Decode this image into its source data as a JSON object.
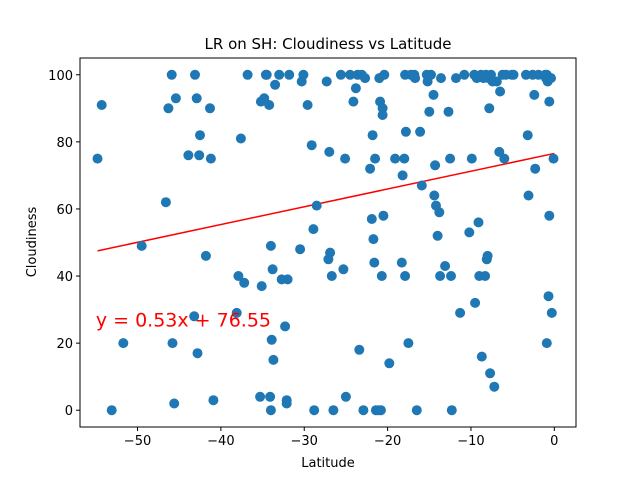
{
  "chart_data": {
    "type": "scatter",
    "title": "LR on SH: Cloudiness vs Latitude",
    "xlabel": "Latitude",
    "ylabel": "Cloudiness",
    "xlim": [
      -56.9,
      2.6
    ],
    "ylim": [
      -5,
      105
    ],
    "xticks": [
      -50,
      -40,
      -30,
      -20,
      -10,
      0
    ],
    "yticks": [
      0,
      20,
      40,
      60,
      80,
      100
    ],
    "grid": false,
    "colors": {
      "points": "#1f77b4",
      "line": "#ff0000",
      "equation": "#ff0000"
    },
    "regression": {
      "slope": 0.53,
      "intercept": 76.55,
      "x_range": [
        -54.8,
        0
      ],
      "label": "y = 0.53x + 76.55",
      "label_anchor": [
        -55,
        25
      ]
    },
    "points": [
      [
        -54.8,
        75
      ],
      [
        -54.3,
        91
      ],
      [
        -53.1,
        0
      ],
      [
        -51.7,
        20
      ],
      [
        -49.5,
        49
      ],
      [
        -46.6,
        62
      ],
      [
        -46.3,
        90
      ],
      [
        -45.9,
        100
      ],
      [
        -45.8,
        20
      ],
      [
        -45.6,
        2
      ],
      [
        -45.4,
        93
      ],
      [
        -43.9,
        76
      ],
      [
        -43.2,
        28
      ],
      [
        -43.1,
        100
      ],
      [
        -42.9,
        93
      ],
      [
        -42.8,
        17
      ],
      [
        -42.6,
        76
      ],
      [
        -42.5,
        82
      ],
      [
        -41.8,
        46
      ],
      [
        -41.3,
        90
      ],
      [
        -41.2,
        75
      ],
      [
        -40.9,
        3
      ],
      [
        -38.1,
        29
      ],
      [
        -37.9,
        40
      ],
      [
        -37.6,
        81
      ],
      [
        -37.2,
        38
      ],
      [
        -36.8,
        100
      ],
      [
        -35.3,
        4
      ],
      [
        -35.2,
        92
      ],
      [
        -35.1,
        37
      ],
      [
        -34.8,
        93
      ],
      [
        -34.6,
        100
      ],
      [
        -34.5,
        100
      ],
      [
        -34.2,
        91
      ],
      [
        -34.1,
        4
      ],
      [
        -34.0,
        49
      ],
      [
        -34.0,
        0
      ],
      [
        -33.9,
        21
      ],
      [
        -33.8,
        42
      ],
      [
        -33.7,
        15
      ],
      [
        -33.5,
        97
      ],
      [
        -33.0,
        100
      ],
      [
        -32.7,
        39
      ],
      [
        -32.3,
        25
      ],
      [
        -32.1,
        3
      ],
      [
        -32.1,
        2
      ],
      [
        -32.0,
        39
      ],
      [
        -31.8,
        100
      ],
      [
        -30.5,
        48
      ],
      [
        -30.3,
        98
      ],
      [
        -30.1,
        100
      ],
      [
        -29.6,
        91
      ],
      [
        -29.1,
        79
      ],
      [
        -28.9,
        54
      ],
      [
        -28.8,
        0
      ],
      [
        -28.5,
        61
      ],
      [
        -27.3,
        98
      ],
      [
        -27.1,
        45
      ],
      [
        -27.0,
        77
      ],
      [
        -26.9,
        47
      ],
      [
        -26.7,
        40
      ],
      [
        -26.5,
        0
      ],
      [
        -25.6,
        100
      ],
      [
        -25.3,
        42
      ],
      [
        -25.1,
        75
      ],
      [
        -25.0,
        4
      ],
      [
        -24.5,
        100
      ],
      [
        -24.1,
        92
      ],
      [
        -23.8,
        96
      ],
      [
        -23.6,
        100
      ],
      [
        -23.4,
        18
      ],
      [
        -23.1,
        100
      ],
      [
        -22.9,
        0
      ],
      [
        -22.7,
        99
      ],
      [
        -22.1,
        72
      ],
      [
        -21.9,
        57
      ],
      [
        -21.8,
        82
      ],
      [
        -21.7,
        51
      ],
      [
        -21.6,
        44
      ],
      [
        -21.5,
        75
      ],
      [
        -21.4,
        0
      ],
      [
        -21.1,
        0
      ],
      [
        -21.0,
        99
      ],
      [
        -20.9,
        92
      ],
      [
        -20.8,
        0
      ],
      [
        -20.7,
        40
      ],
      [
        -20.6,
        90
      ],
      [
        -20.6,
        88
      ],
      [
        -20.5,
        58
      ],
      [
        -20.4,
        100
      ],
      [
        -19.8,
        14
      ],
      [
        -19.1,
        75
      ],
      [
        -18.3,
        44
      ],
      [
        -18.2,
        70
      ],
      [
        -18.0,
        75
      ],
      [
        -17.9,
        100
      ],
      [
        -17.8,
        83
      ],
      [
        -17.9,
        40
      ],
      [
        -17.5,
        20
      ],
      [
        -17.2,
        100
      ],
      [
        -16.8,
        100
      ],
      [
        -16.7,
        99
      ],
      [
        -16.5,
        0
      ],
      [
        -16.1,
        83
      ],
      [
        -15.9,
        67
      ],
      [
        -15.3,
        100
      ],
      [
        -15.2,
        98
      ],
      [
        -15.0,
        89
      ],
      [
        -14.8,
        100
      ],
      [
        -14.5,
        94
      ],
      [
        -14.4,
        64
      ],
      [
        -14.3,
        73
      ],
      [
        -14.2,
        61
      ],
      [
        -14.0,
        52
      ],
      [
        -13.8,
        59
      ],
      [
        -13.7,
        40
      ],
      [
        -13.6,
        99
      ],
      [
        -13.1,
        43
      ],
      [
        -12.7,
        89
      ],
      [
        -12.5,
        75
      ],
      [
        -12.4,
        40
      ],
      [
        -12.3,
        0
      ],
      [
        -11.8,
        99
      ],
      [
        -11.3,
        29
      ],
      [
        -10.8,
        100
      ],
      [
        -10.2,
        53
      ],
      [
        -9.9,
        75
      ],
      [
        -9.6,
        100
      ],
      [
        -9.5,
        32
      ],
      [
        -9.3,
        99
      ],
      [
        -9.1,
        56
      ],
      [
        -9.0,
        40
      ],
      [
        -8.8,
        100
      ],
      [
        -8.7,
        16
      ],
      [
        -8.5,
        99
      ],
      [
        -8.3,
        40
      ],
      [
        -8.2,
        100
      ],
      [
        -8.1,
        45
      ],
      [
        -8.0,
        46
      ],
      [
        -7.9,
        99
      ],
      [
        -7.8,
        90
      ],
      [
        -7.7,
        11
      ],
      [
        -7.6,
        100
      ],
      [
        -7.4,
        98
      ],
      [
        -7.2,
        7
      ],
      [
        -6.9,
        98
      ],
      [
        -6.6,
        77
      ],
      [
        -6.5,
        95
      ],
      [
        -6.2,
        100
      ],
      [
        -6.0,
        75
      ],
      [
        -5.8,
        100
      ],
      [
        -5.1,
        100
      ],
      [
        -4.9,
        100
      ],
      [
        -3.4,
        100
      ],
      [
        -3.2,
        82
      ],
      [
        -3.1,
        64
      ],
      [
        -2.6,
        100
      ],
      [
        -2.4,
        94
      ],
      [
        -2.3,
        72
      ],
      [
        -1.9,
        100
      ],
      [
        -1.1,
        100
      ],
      [
        -1.0,
        99
      ],
      [
        -0.9,
        100
      ],
      [
        -0.9,
        20
      ],
      [
        -0.8,
        98
      ],
      [
        -0.7,
        34
      ],
      [
        -0.6,
        58
      ],
      [
        -0.6,
        92
      ],
      [
        -0.4,
        99
      ],
      [
        -0.3,
        29
      ],
      [
        -0.1,
        75
      ]
    ]
  }
}
